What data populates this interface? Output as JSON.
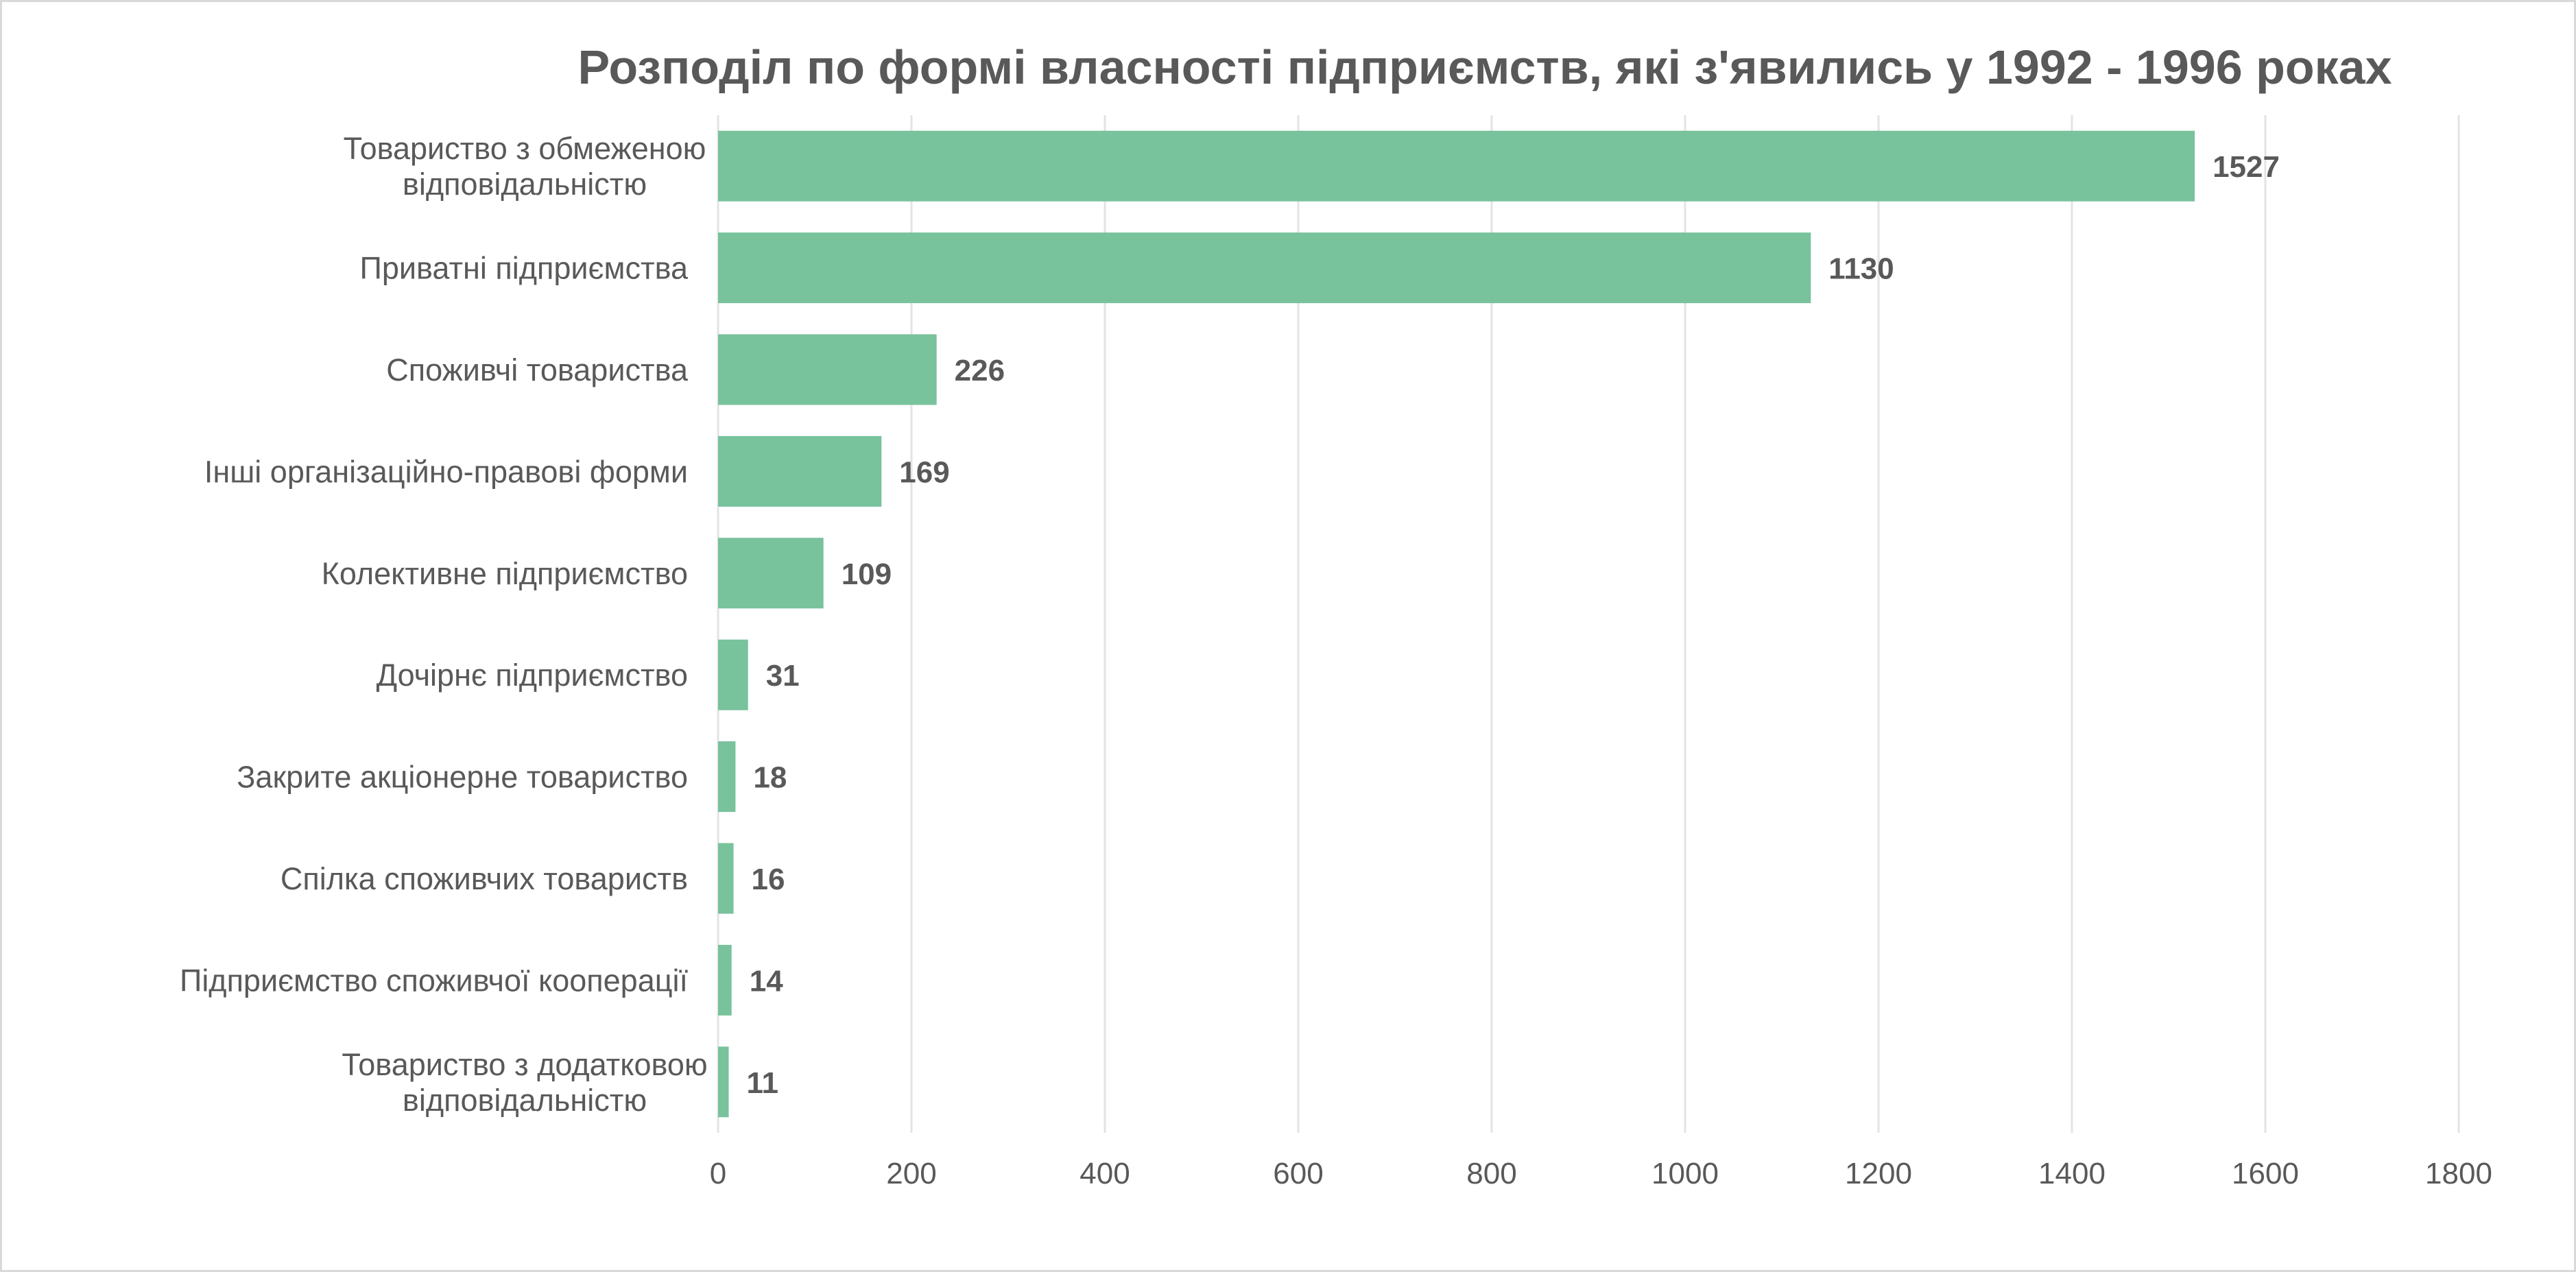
{
  "chart_data": {
    "type": "bar",
    "orientation": "horizontal",
    "title": "Розподіл по формі власності підприємств, які з'явились у 1992 - 1996 роках",
    "categories": [
      [
        "Товариство з обмеженою",
        "відповідальністю"
      ],
      [
        "Приватні підприємства"
      ],
      [
        "Споживчі товариства"
      ],
      [
        "Інші організаційно-правові форми"
      ],
      [
        "Колективне підприємство"
      ],
      [
        "Дочірнє підприємство"
      ],
      [
        "Закрите акціонерне товариство"
      ],
      [
        "Спілка споживчих товариств"
      ],
      [
        "Підприємство споживчої кооперації"
      ],
      [
        "Товариство з додатковою",
        "відповідальністю"
      ]
    ],
    "values": [
      1527,
      1130,
      226,
      169,
      109,
      31,
      18,
      16,
      14,
      11
    ],
    "data_labels": [
      "1527",
      "1130",
      "226",
      "169",
      "109",
      "31",
      "18",
      "16",
      "14",
      "11"
    ],
    "xlim": [
      0,
      1800
    ],
    "xticks": [
      "0",
      "200",
      "400",
      "600",
      "800",
      "1000",
      "1200",
      "1400",
      "1600",
      "1800"
    ],
    "xlabel": "",
    "ylabel": "",
    "grid": "vertical",
    "legend": "none",
    "bar_color": "#78c29c",
    "text_color": "#595959",
    "grid_color": "#e3e3e3"
  }
}
